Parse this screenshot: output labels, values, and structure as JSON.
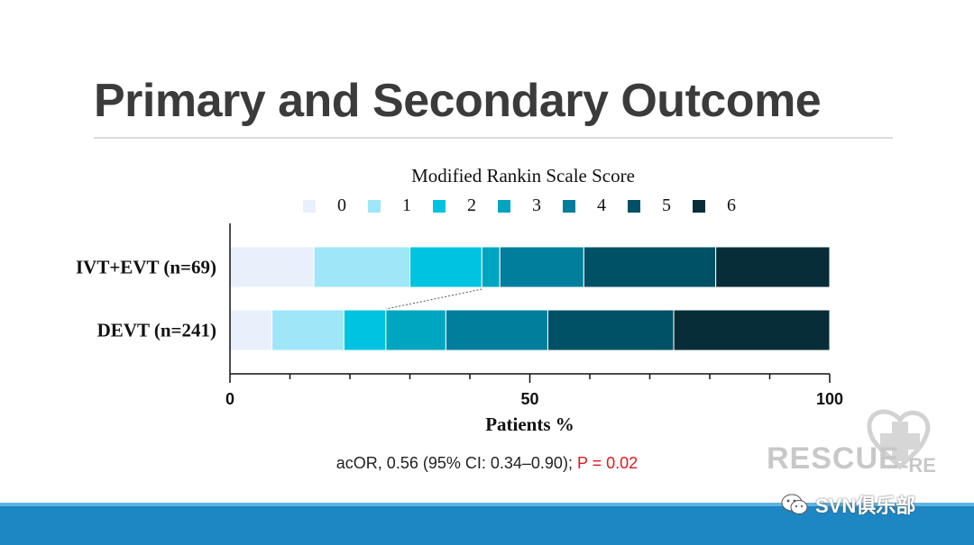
{
  "title": "Primary and Secondary Outcome",
  "chart_data": {
    "type": "bar",
    "orientation": "horizontal",
    "stacked": true,
    "legend_title": "Modified Rankin Scale Score",
    "legend_position": "top",
    "categories": [
      "IVT+EVT (n=69)",
      "DEVT (n=241)"
    ],
    "series": [
      {
        "name": "0",
        "color": "#e8f0fb",
        "values": [
          14.0,
          7.0
        ]
      },
      {
        "name": "1",
        "color": "#9ee6f8",
        "values": [
          16.0,
          12.0
        ]
      },
      {
        "name": "2",
        "color": "#00c3e1",
        "values": [
          12.0,
          7.0
        ]
      },
      {
        "name": "3",
        "color": "#00a6bf",
        "values": [
          3.0,
          10.0
        ]
      },
      {
        "name": "4",
        "color": "#007e9c",
        "values": [
          14.0,
          17.0
        ]
      },
      {
        "name": "5",
        "color": "#005166",
        "values": [
          22.0,
          21.0
        ]
      },
      {
        "name": "6",
        "color": "#062d38",
        "values": [
          19.0,
          26.0
        ]
      }
    ],
    "xlabel": "Patients %",
    "xlim": [
      0,
      100
    ],
    "xticks": [
      0,
      50,
      100
    ],
    "grid": false
  },
  "statistic": {
    "prefix": "acOR, 0.56 (95% CI: 0.34–0.90); ",
    "p_value": "P = 0.02"
  },
  "watermark": {
    "text": "RESCUE",
    "suffix": "-RE"
  },
  "badge": {
    "icon": "wechat-icon",
    "label": "SVN俱乐部"
  }
}
